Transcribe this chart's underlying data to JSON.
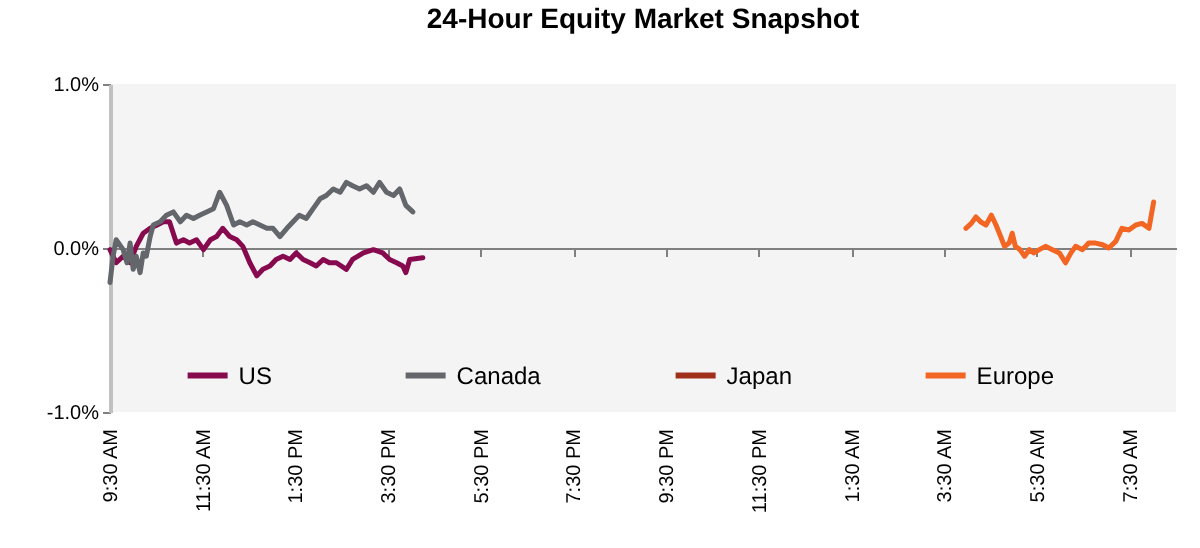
{
  "chart_data": {
    "type": "line",
    "title": "24-Hour Equity Market Snapshot",
    "xlim": [
      "--03-15T09:30",
      "--03-16T08:30"
    ],
    "xticks": [
      {
        "value": "--03-15T09:30",
        "label": "9:30 AM"
      },
      {
        "value": "--03-15T11:30",
        "label": "11:30 AM"
      },
      {
        "value": "--03-15T13:30",
        "label": "1:30 PM"
      },
      {
        "value": "--03-15T15:30",
        "label": "3:30 PM"
      },
      {
        "value": "--03-15T17:30",
        "label": "5:30 PM"
      },
      {
        "value": "--03-15T19:30",
        "label": "7:30 PM"
      },
      {
        "value": "--03-15T21:30",
        "label": "9:30 PM"
      },
      {
        "value": "--03-15T23:30",
        "label": "11:30 PM"
      },
      {
        "value": "--03-16T01:30",
        "label": "1:30 AM"
      },
      {
        "value": "--03-16T03:30",
        "label": "3:30 AM"
      },
      {
        "value": "--03-16T05:30",
        "label": "5:30 AM"
      },
      {
        "value": "--03-16T07:30",
        "label": "7:30 AM"
      }
    ],
    "ylim": [
      -1,
      1
    ],
    "yticks": [
      {
        "value": -1,
        "label": "-1.0%"
      },
      {
        "value": 0,
        "label": "0.0%"
      },
      {
        "value": 1,
        "label": "1.0%"
      }
    ],
    "legend": "bottom",
    "line_style": "solid",
    "marker": "none",
    "series": [
      {
        "name": "US",
        "color": "#870a4f",
        "x": [
          "--03-15T09:30",
          "--03-15T09:38",
          "--03-15T09:47",
          "--03-15T09:56",
          "--03-15T10:04",
          "--03-15T10:13",
          "--03-15T10:22",
          "--03-15T10:31",
          "--03-15T10:39",
          "--03-15T10:47",
          "--03-15T10:56",
          "--03-15T11:05",
          "--03-15T11:13",
          "--03-15T11:22",
          "--03-15T11:31",
          "--03-15T11:40",
          "--03-15T11:48",
          "--03-15T11:56",
          "--03-15T12:05",
          "--03-15T12:14",
          "--03-15T12:22",
          "--03-15T12:31",
          "--03-15T12:40",
          "--03-15T12:48",
          "--03-15T12:57",
          "--03-15T13:05",
          "--03-15T13:14",
          "--03-15T13:23",
          "--03-15T13:31",
          "--03-15T13:40",
          "--03-15T13:49",
          "--03-15T13:57",
          "--03-15T14:06",
          "--03-15T14:14",
          "--03-15T14:23",
          "--03-15T14:36",
          "--03-15T14:44",
          "--03-15T14:58",
          "--03-15T15:11",
          "--03-15T15:23",
          "--03-15T15:32",
          "--03-15T15:41",
          "--03-15T15:49",
          "--03-15T15:53",
          "--03-15T15:58",
          "--03-15T16:15"
        ],
        "values": [
          -0.01,
          -0.09,
          -0.05,
          -0.09,
          0.01,
          0.09,
          0.12,
          0.14,
          0.16,
          0.16,
          0.03,
          0.05,
          0.03,
          0.05,
          -0.01,
          0.05,
          0.07,
          0.12,
          0.07,
          0.05,
          0.01,
          -0.09,
          -0.17,
          -0.13,
          -0.11,
          -0.07,
          -0.05,
          -0.07,
          -0.03,
          -0.07,
          -0.09,
          -0.11,
          -0.07,
          -0.09,
          -0.09,
          -0.13,
          -0.07,
          -0.03,
          -0.01,
          -0.03,
          -0.07,
          -0.09,
          -0.11,
          -0.15,
          -0.07,
          -0.06
        ]
      },
      {
        "name": "Canada",
        "color": "#63666a",
        "x": [
          "--03-15T09:30",
          "--03-15T09:34",
          "--03-15T09:38",
          "--03-15T09:47",
          "--03-15T09:52",
          "--03-15T09:56",
          "--03-15T10:00",
          "--03-15T10:04",
          "--03-15T10:09",
          "--03-15T10:13",
          "--03-15T10:17",
          "--03-15T10:22",
          "--03-15T10:26",
          "--03-15T10:35",
          "--03-15T10:43",
          "--03-15T10:52",
          "--03-15T11:01",
          "--03-15T11:09",
          "--03-15T11:18",
          "--03-15T11:26",
          "--03-15T11:35",
          "--03-15T11:44",
          "--03-15T11:52",
          "--03-15T12:01",
          "--03-15T12:10",
          "--03-15T12:18",
          "--03-15T12:27",
          "--03-15T12:35",
          "--03-15T12:44",
          "--03-15T12:53",
          "--03-15T13:01",
          "--03-15T13:10",
          "--03-15T13:19",
          "--03-15T13:27",
          "--03-15T13:35",
          "--03-15T13:44",
          "--03-15T13:53",
          "--03-15T14:02",
          "--03-15T14:10",
          "--03-15T14:19",
          "--03-15T14:28",
          "--03-15T14:36",
          "--03-15T14:44",
          "--03-15T14:53",
          "--03-15T15:02",
          "--03-15T15:11",
          "--03-15T15:19",
          "--03-15T15:28",
          "--03-15T15:37",
          "--03-15T15:45",
          "--03-15T15:53",
          "--03-15T16:02"
        ],
        "values": [
          -0.21,
          -0.05,
          0.05,
          -0.01,
          -0.09,
          0.03,
          -0.13,
          -0.05,
          -0.15,
          -0.03,
          -0.05,
          0.07,
          0.14,
          0.16,
          0.2,
          0.22,
          0.16,
          0.2,
          0.18,
          0.2,
          0.22,
          0.24,
          0.34,
          0.26,
          0.14,
          0.16,
          0.14,
          0.16,
          0.14,
          0.12,
          0.12,
          0.07,
          0.12,
          0.16,
          0.2,
          0.18,
          0.24,
          0.3,
          0.32,
          0.36,
          0.34,
          0.4,
          0.38,
          0.36,
          0.38,
          0.34,
          0.4,
          0.34,
          0.32,
          0.36,
          0.26,
          0.22
        ]
      },
      {
        "name": "Japan",
        "color": "#a0301a"
      },
      {
        "name": "Europe",
        "color": "#f26522",
        "x": [
          "--03-16T03:58",
          "--03-16T04:05",
          "--03-16T04:11",
          "--03-16T04:17",
          "--03-16T04:24",
          "--03-16T04:31",
          "--03-16T04:37",
          "--03-16T04:43",
          "--03-16T04:48",
          "--03-16T04:54",
          "--03-16T04:58",
          "--03-16T05:02",
          "--03-16T05:08",
          "--03-16T05:14",
          "--03-16T05:20",
          "--03-16T05:26",
          "--03-16T05:33",
          "--03-16T05:41",
          "--03-16T05:50",
          "--03-16T05:59",
          "--03-16T06:07",
          "--03-16T06:14",
          "--03-16T06:20",
          "--03-16T06:29",
          "--03-16T06:37",
          "--03-16T06:46",
          "--03-16T06:55",
          "--03-16T07:03",
          "--03-16T07:12",
          "--03-16T07:20",
          "--03-16T07:29",
          "--03-16T07:38",
          "--03-16T07:46",
          "--03-16T07:55",
          "--03-16T08:01"
        ],
        "values": [
          0.12,
          0.15,
          0.19,
          0.16,
          0.14,
          0.2,
          0.14,
          0.07,
          0.01,
          0.03,
          0.09,
          0.01,
          -0.01,
          -0.05,
          -0.01,
          -0.03,
          -0.01,
          0.01,
          -0.01,
          -0.03,
          -0.09,
          -0.03,
          0.01,
          -0.01,
          0.03,
          0.03,
          0.02,
          0.0,
          0.04,
          0.12,
          0.11,
          0.14,
          0.15,
          0.12,
          0.28
        ]
      }
    ]
  }
}
